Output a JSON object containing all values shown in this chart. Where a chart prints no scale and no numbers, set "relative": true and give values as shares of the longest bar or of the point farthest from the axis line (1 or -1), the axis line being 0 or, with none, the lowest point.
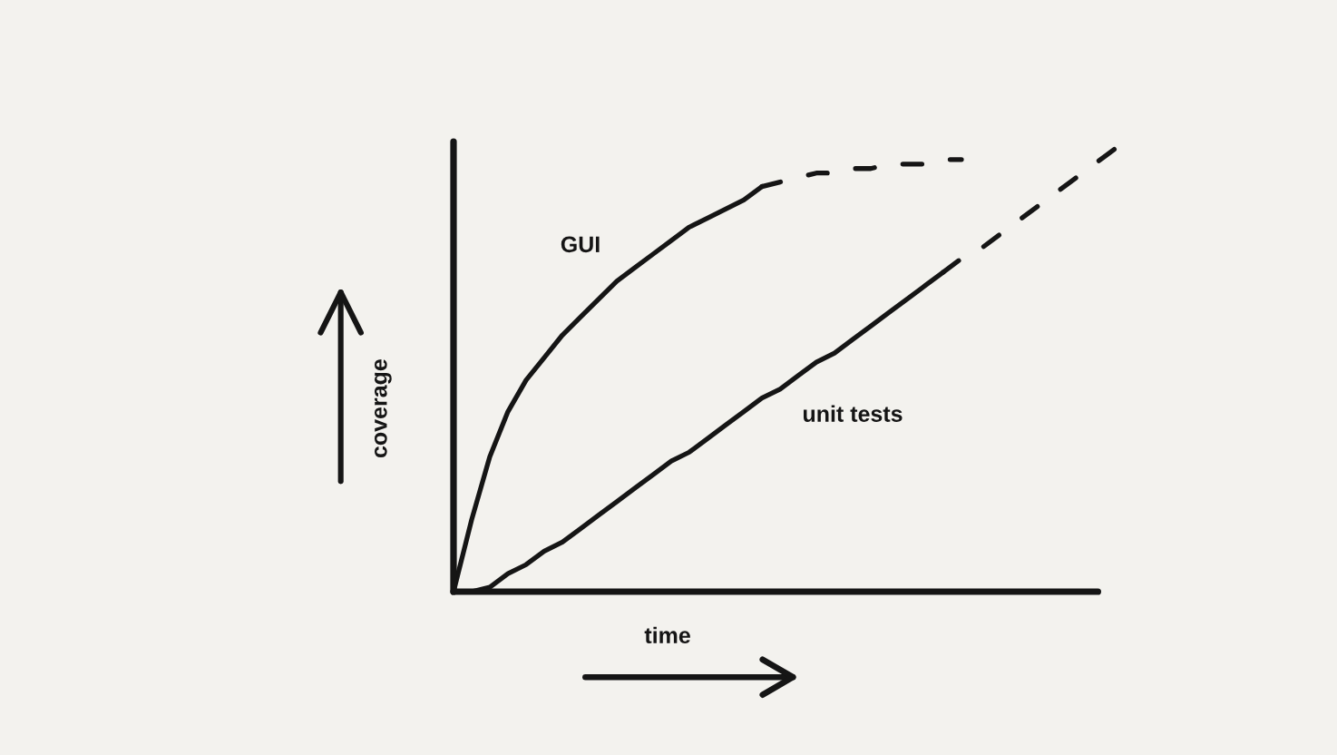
{
  "chart_data": {
    "type": "line",
    "relative": true,
    "xlabel": "time",
    "ylabel": "coverage",
    "categories": [
      null,
      null,
      null,
      null,
      null,
      null,
      null,
      null,
      null,
      null,
      null,
      null,
      null,
      null,
      null,
      null,
      null,
      null,
      null,
      null,
      null,
      null,
      null,
      null,
      null,
      null,
      null,
      null,
      null,
      null,
      null,
      null,
      null,
      null,
      null,
      null,
      null,
      null
    ],
    "series": [
      {
        "name": "GUI",
        "color": "#151515",
        "values": [
          0,
          0.16,
          0.3,
          0.4,
          0.47,
          0.52,
          0.57,
          0.61,
          0.65,
          0.69,
          0.72,
          0.75,
          0.78,
          0.81,
          0.83,
          0.85,
          0.87,
          0.9,
          null,
          null,
          null,
          null,
          null,
          null,
          null,
          null,
          null,
          null,
          null,
          null,
          null,
          null,
          null,
          null,
          null,
          null,
          null,
          null
        ]
      },
      {
        "color": "#151515",
        "line_style": "dashed",
        "values": [
          null,
          null,
          null,
          null,
          null,
          null,
          null,
          null,
          null,
          null,
          null,
          null,
          null,
          null,
          null,
          null,
          null,
          0.9,
          0.91,
          0.92,
          0.93,
          0.93,
          0.94,
          0.94,
          0.95,
          0.95,
          0.95,
          0.96,
          0.96,
          null,
          null,
          null,
          null,
          null,
          null,
          null,
          null,
          null
        ]
      },
      {
        "name": "unit tests",
        "color": "#151515",
        "values": [
          null,
          0,
          0.01,
          0.04,
          0.06,
          0.09,
          0.11,
          0.14,
          0.17,
          0.2,
          0.23,
          0.26,
          0.29,
          0.31,
          0.34,
          0.37,
          0.4,
          0.43,
          0.45,
          0.48,
          0.51,
          0.53,
          0.56,
          0.59,
          0.62,
          0.65,
          0.68,
          0.71,
          null,
          null,
          null,
          null,
          null,
          null,
          null,
          null,
          null,
          null
        ]
      },
      {
        "color": "#151515",
        "line_style": "dashed",
        "values": [
          null,
          null,
          null,
          null,
          null,
          null,
          null,
          null,
          null,
          null,
          null,
          null,
          null,
          null,
          null,
          null,
          null,
          null,
          null,
          null,
          null,
          null,
          null,
          null,
          null,
          null,
          null,
          0.71,
          0.74,
          0.76,
          0.79,
          0.82,
          0.85,
          0.88,
          0.91,
          0.94,
          0.97,
          1.0
        ]
      }
    ],
    "line_style": "solid",
    "marker": "none",
    "legend": false
  }
}
